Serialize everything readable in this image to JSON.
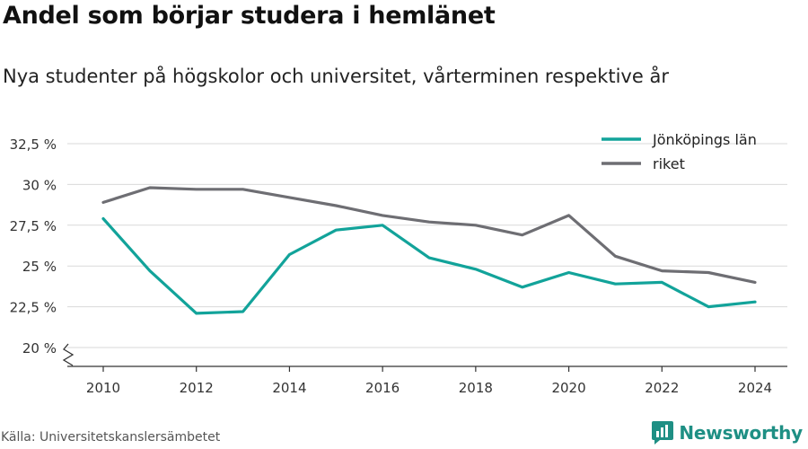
{
  "title": "Andel som börjar studera i hemlänet",
  "subtitle": "Nya studenter på högskolor och universitet, vårterminen respektive år",
  "source": "Källa: Universitetskanslersämbetet",
  "brand": "Newsworthy",
  "colors": {
    "jonkoping": "#12a39a",
    "riket": "#6e6e73",
    "grid": "#d9d9d9",
    "axis": "#333333",
    "brand": "#1e8f84"
  },
  "chart_data": {
    "type": "line",
    "x": [
      2010,
      2011,
      2012,
      2013,
      2014,
      2015,
      2016,
      2017,
      2018,
      2019,
      2020,
      2021,
      2022,
      2023,
      2024
    ],
    "series": [
      {
        "name": "Jönköpings län",
        "values": [
          27.9,
          24.7,
          22.1,
          22.2,
          25.7,
          27.2,
          27.5,
          25.5,
          24.8,
          23.7,
          24.6,
          23.9,
          24.0,
          22.5,
          22.8
        ]
      },
      {
        "name": "riket",
        "values": [
          28.9,
          29.8,
          29.7,
          29.7,
          29.2,
          28.7,
          28.1,
          27.7,
          27.5,
          26.9,
          28.1,
          25.6,
          24.7,
          24.6,
          24.0
        ]
      }
    ],
    "yticks": [
      20,
      22.5,
      25,
      27.5,
      30,
      32.5
    ],
    "ytick_labels": [
      "20 %",
      "22,5 %",
      "25 %",
      "27,5 %",
      "30 %",
      "32,5 %"
    ],
    "xticks": [
      2010,
      2012,
      2014,
      2016,
      2018,
      2020,
      2022,
      2024
    ],
    "xtick_labels": [
      "2010",
      "2012",
      "2014",
      "2016",
      "2018",
      "2020",
      "2022",
      "2024"
    ],
    "ylim": [
      20,
      32.5
    ],
    "xlim": [
      2010,
      2024
    ],
    "grid": true,
    "axis_break": true,
    "legend_position": "top-right"
  }
}
